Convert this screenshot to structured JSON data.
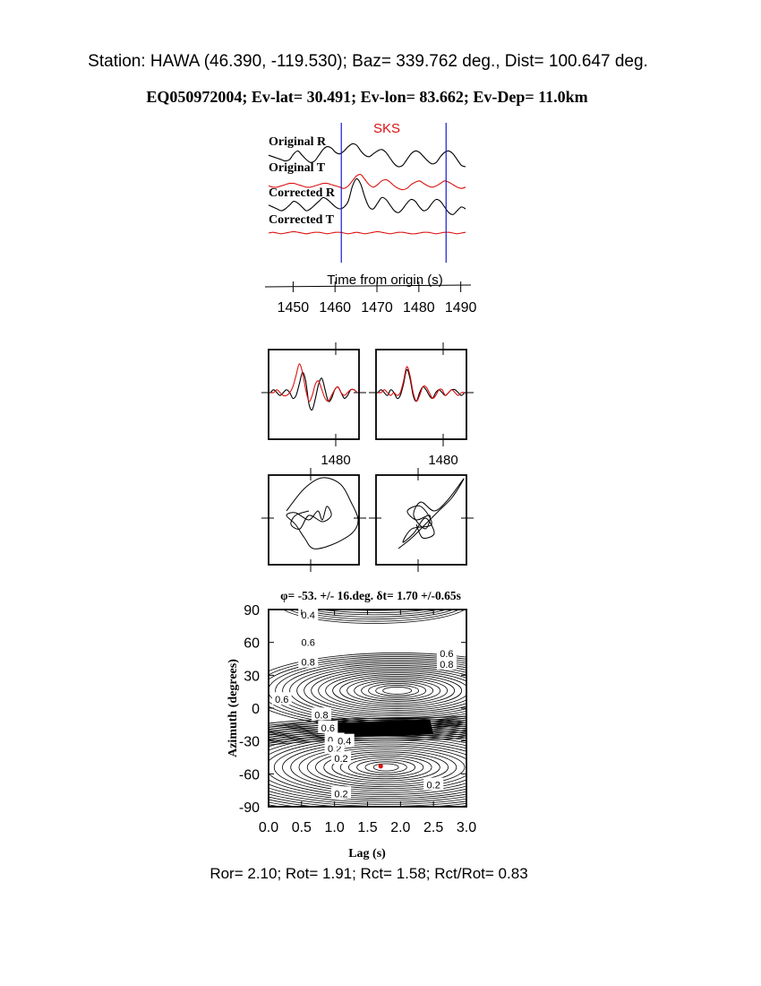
{
  "header": {
    "station_line": "Station: HAWA (46.390, -119.530); Baz=  339.762 deg., Dist=  100.647 deg.",
    "event_line": "EQ050972004; Ev-lat=  30.491; Ev-lon=  83.662; Ev-Dep= 11.0km"
  },
  "footer": {
    "ratios_line": "Ror= 2.10; Rot= 1.91; Rct= 1.58; Rct/Rot= 0.83"
  },
  "colors": {
    "black_trace": "#000000",
    "red_trace": "#dd1111",
    "window_marker": "#1a1ad0",
    "best_fit_dot": "#dd1111"
  },
  "chart_data": [
    {
      "type": "line",
      "phase_label": "SKS",
      "xlabel": "Time from origin (s)",
      "xlim": [
        1445,
        1492
      ],
      "x_ticks": [
        1450,
        1460,
        1470,
        1480,
        1490
      ],
      "window": [
        1461.5,
        1486.5
      ],
      "series": [
        {
          "name": "Original R",
          "color": "black",
          "values": [
            0.3,
            0.2,
            0.1,
            0.0,
            -0.1,
            0.0,
            0.4,
            0.6,
            0.3,
            0.0,
            -0.2,
            -0.1,
            0.3,
            0.7,
            0.9,
            0.8,
            0.5,
            0.4,
            0.6,
            0.9,
            1.1,
            1.0,
            0.6,
            0.3,
            0.2,
            0.4,
            0.6,
            0.7,
            0.5,
            0.1,
            -0.3,
            -0.5,
            -0.4,
            0.0,
            0.4,
            0.6,
            0.5,
            0.2,
            -0.1,
            -0.3,
            -0.2,
            0.2,
            0.5,
            0.6,
            0.4,
            0.0,
            -0.4,
            -0.5
          ]
        },
        {
          "name": "Original T",
          "color": "red",
          "values": [
            -0.1,
            -0.2,
            -0.2,
            -0.1,
            0.0,
            0.1,
            0.1,
            0.0,
            -0.1,
            -0.2,
            -0.2,
            -0.1,
            0.0,
            0.1,
            0.1,
            0.0,
            -0.1,
            -0.2,
            -0.3,
            -0.1,
            0.3,
            0.7,
            0.8,
            0.4,
            0.0,
            -0.2,
            0.0,
            0.3,
            0.4,
            0.2,
            -0.1,
            -0.3,
            -0.4,
            -0.3,
            0.0,
            0.2,
            0.3,
            0.1,
            -0.1,
            -0.2,
            -0.1,
            0.1,
            0.3,
            0.2,
            0.0,
            -0.2,
            -0.3,
            -0.2
          ]
        },
        {
          "name": "Corrected R",
          "color": "black",
          "values": [
            0.2,
            0.1,
            0.0,
            -0.1,
            0.0,
            0.2,
            0.4,
            0.3,
            0.1,
            -0.1,
            0.0,
            0.2,
            0.4,
            0.6,
            0.5,
            0.3,
            0.1,
            0.0,
            0.1,
            0.4,
            1.2,
            1.6,
            1.3,
            0.6,
            0.1,
            0.0,
            0.3,
            0.6,
            0.5,
            0.2,
            -0.1,
            -0.2,
            0.0,
            0.3,
            0.5,
            0.4,
            0.1,
            -0.1,
            0.0,
            0.3,
            0.5,
            0.4,
            0.1,
            -0.2,
            -0.3,
            -0.1,
            0.1,
            0.0
          ]
        },
        {
          "name": "Corrected T",
          "color": "red",
          "values": [
            0.0,
            0.1,
            0.0,
            -0.1,
            0.0,
            0.1,
            0.2,
            0.1,
            0.0,
            -0.1,
            0.0,
            0.1,
            0.1,
            0.0,
            -0.1,
            0.0,
            0.1,
            0.1,
            0.0,
            -0.1,
            0.0,
            0.1,
            0.0,
            -0.1,
            0.0,
            0.1,
            0.2,
            0.1,
            0.0,
            -0.1,
            0.0,
            0.1,
            0.1,
            0.0,
            -0.1,
            -0.1,
            0.0,
            0.1,
            0.1,
            0.0,
            -0.1,
            0.0,
            0.1,
            0.1,
            0.0,
            -0.1,
            0.0,
            0.1
          ]
        }
      ]
    },
    {
      "type": "line",
      "x_tick_label": "1480",
      "series": [
        {
          "color": "black",
          "values": [
            0.0,
            0.1,
            0.0,
            -0.1,
            0.0,
            0.1,
            0.0,
            -0.2,
            -0.1,
            0.3,
            0.7,
            0.4,
            -0.4,
            -0.6,
            -0.2,
            0.3,
            0.5,
            0.1,
            -0.3,
            -0.2,
            0.1,
            0.2,
            0.0,
            -0.2,
            -0.1,
            0.1,
            0.1,
            0.0
          ]
        },
        {
          "color": "red",
          "values": [
            0.0,
            0.0,
            0.1,
            0.0,
            -0.1,
            -0.1,
            0.0,
            0.2,
            0.6,
            1.0,
            0.7,
            0.1,
            -0.3,
            -0.1,
            0.3,
            0.4,
            0.1,
            -0.2,
            -0.3,
            -0.1,
            0.1,
            0.2,
            0.0,
            -0.1,
            0.0,
            0.1,
            0.1,
            0.0
          ]
        }
      ]
    },
    {
      "type": "line",
      "x_tick_label": "1480",
      "series": [
        {
          "color": "black",
          "values": [
            0.0,
            0.1,
            0.0,
            -0.1,
            0.1,
            0.0,
            -0.2,
            -0.1,
            0.3,
            0.8,
            0.5,
            -0.1,
            -0.3,
            0.0,
            0.2,
            0.1,
            -0.1,
            -0.2,
            0.0,
            0.1,
            0.0,
            -0.1,
            0.0,
            0.1,
            0.1,
            0.0,
            -0.1,
            0.0
          ]
        },
        {
          "color": "red",
          "values": [
            0.0,
            0.0,
            0.1,
            0.0,
            -0.1,
            0.0,
            -0.1,
            0.0,
            0.4,
            0.9,
            0.6,
            0.0,
            -0.3,
            -0.1,
            0.2,
            0.2,
            0.0,
            -0.2,
            -0.1,
            0.1,
            0.1,
            -0.1,
            0.0,
            0.1,
            0.0,
            -0.1,
            0.0,
            0.0
          ]
        }
      ]
    },
    {
      "type": "scatter",
      "label": "particle motion (original)"
    },
    {
      "type": "scatter",
      "label": "particle motion (corrected)"
    },
    {
      "type": "heatmap",
      "title": "φ= -53. +/- 16.deg. δt= 1.70 +/-0.65s",
      "xlabel": "Lag (s)",
      "ylabel": "Azimuth (degrees)",
      "xlim": [
        0,
        3
      ],
      "ylim": [
        -90,
        90
      ],
      "x_ticks": [
        "0.0",
        "0.5",
        "1.0",
        "1.5",
        "2.0",
        "2.5",
        "3.0"
      ],
      "y_ticks": [
        "90",
        "60",
        "30",
        "0",
        "-30",
        "-60",
        "-90"
      ],
      "contour_labels": [
        "0.4",
        "0.6",
        "0.8",
        "0.6",
        "0.8",
        "0.6",
        "0.8",
        "0.6",
        "0.4",
        "0.2",
        "0.4",
        "0.2",
        "0.2",
        "0.2"
      ],
      "best_fit": {
        "lag": 1.7,
        "azimuth": -53
      }
    }
  ]
}
